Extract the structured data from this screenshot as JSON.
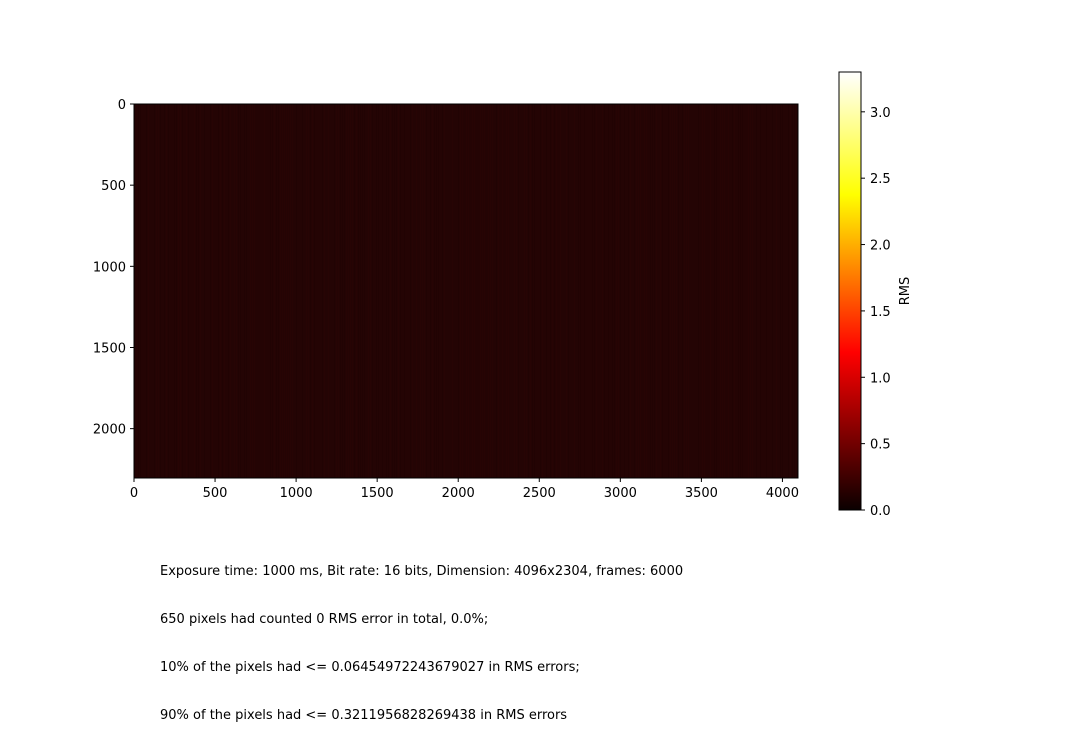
{
  "chart_data": {
    "type": "heatmap",
    "colormap": "hot",
    "xlim": [
      0,
      4096
    ],
    "ylim": [
      2304,
      0
    ],
    "x_ticks": [
      0,
      500,
      1000,
      1500,
      2000,
      2500,
      3000,
      3500,
      4000
    ],
    "y_ticks": [
      0,
      500,
      1000,
      1500,
      2000
    ],
    "x_tick_labels": [
      "0",
      "500",
      "1000",
      "1500",
      "2000",
      "2500",
      "3000",
      "3500",
      "4000"
    ],
    "y_tick_labels": [
      "0",
      "500",
      "1000",
      "1500",
      "2000"
    ],
    "dominant_value": 0.2,
    "colorbar": {
      "label": "RMS",
      "min": 0.0,
      "max": 3.3,
      "ticks": [
        0.0,
        0.5,
        1.0,
        1.5,
        2.0,
        2.5,
        3.0
      ],
      "tick_labels": [
        "0.0",
        "0.5",
        "1.0",
        "1.5",
        "2.0",
        "2.5",
        "3.0"
      ]
    }
  },
  "caption": {
    "line1": "Exposure time: 1000 ms, Bit rate: 16 bits, Dimension: 4096x2304, frames: 6000",
    "line2": "650 pixels had counted 0 RMS error in total, 0.0%;",
    "line3": "10% of the pixels had <= 0.06454972243679027 in RMS errors;",
    "line4": "90% of the pixels had <= 0.3211956828269438 in RMS errors"
  },
  "colors": {
    "background": "#ffffff",
    "heatmap_fill": "#240404"
  }
}
